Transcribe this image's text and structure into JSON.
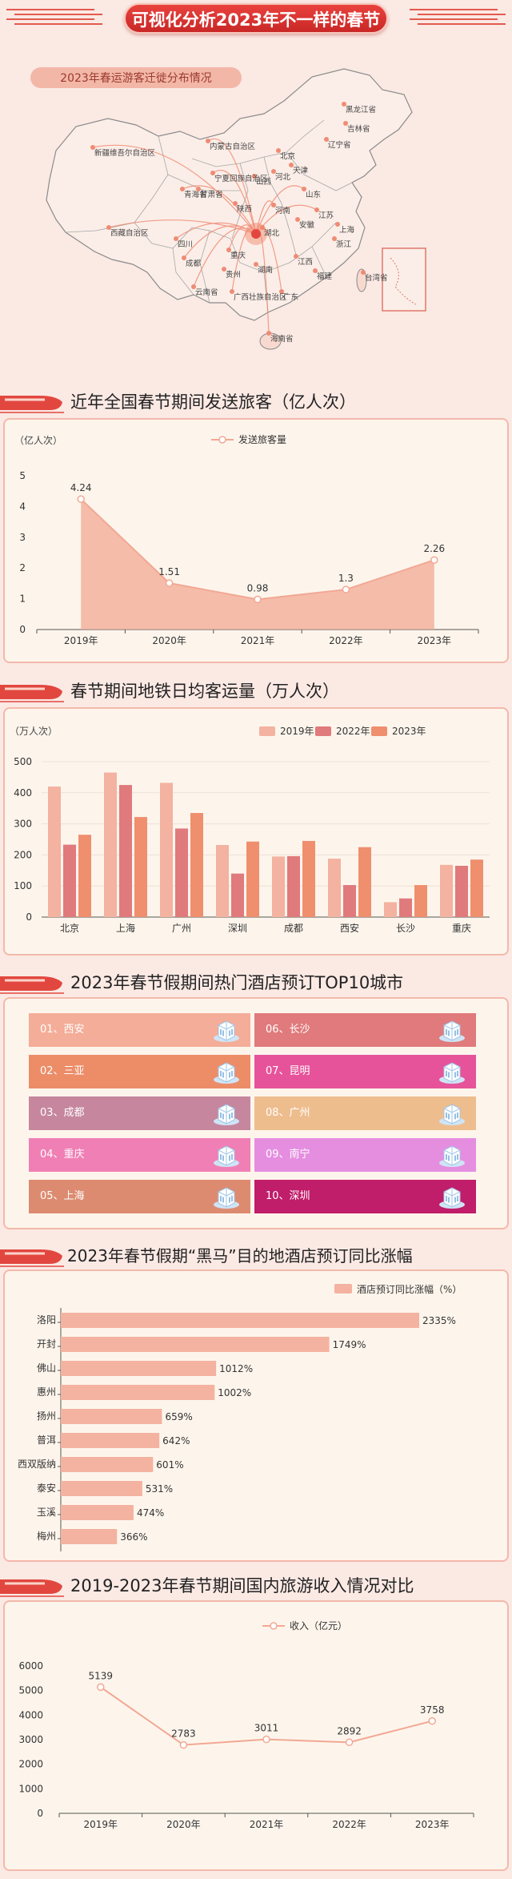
{
  "header": {
    "title": "可视化分析2023年不一样的春节"
  },
  "map": {
    "subtitle": "2023年春运游客迁徙分布情况",
    "labels": [
      "新疆维吾尔自治区",
      "西藏自治区",
      "内蒙古自治区",
      "黑龙江省",
      "吉林省",
      "辽宁省",
      "北京",
      "天津",
      "河北",
      "山西",
      "宁夏回族自治区",
      "甘肃省",
      "青海省",
      "陕西",
      "山东",
      "河南",
      "江苏",
      "安徽",
      "上海",
      "四川",
      "湖北",
      "浙江",
      "成都",
      "重庆",
      "湖南",
      "江西",
      "福建",
      "贵州",
      "云南省",
      "广西壮族自治区",
      "广东",
      "海南省",
      "台湾省"
    ]
  },
  "sections": {
    "s1": "近年全国春节期间发送旅客（亿人次）",
    "s2": "春节期间地铁日均客运量（万人次）",
    "s3": "2023年春节假期间热门酒店预订TOP10城市",
    "s4": "2023年春节假期“黑马”目的地酒店预订同比涨幅",
    "s5": "2019-2023年春节期间国内旅游收入情况对比"
  },
  "chart_data": [
    {
      "type": "area",
      "title": "近年全国春节期间发送旅客（亿人次）",
      "ylabel": "（亿人次）",
      "legend": [
        "发送旅客量"
      ],
      "x": [
        "2019年",
        "2020年",
        "2021年",
        "2022年",
        "2023年"
      ],
      "values": [
        4.24,
        1.51,
        0.98,
        1.3,
        2.26
      ],
      "ylim": [
        0,
        5
      ],
      "yticks": [
        0,
        1,
        2,
        3,
        4,
        5
      ],
      "color": "#f2a894"
    },
    {
      "type": "bar",
      "title": "春节期间地铁日均客运量（万人次）",
      "ylabel": "（万人次）",
      "categories": [
        "北京",
        "上海",
        "广州",
        "深圳",
        "成都",
        "西安",
        "长沙",
        "重庆"
      ],
      "series": [
        {
          "name": "2019年",
          "values": [
            420,
            465,
            432,
            232,
            195,
            188,
            48,
            168
          ],
          "color": "#f4b2a0"
        },
        {
          "name": "2022年",
          "values": [
            233,
            425,
            285,
            140,
            196,
            103,
            60,
            165
          ],
          "color": "#e07a7c"
        },
        {
          "name": "2023年",
          "values": [
            265,
            322,
            335,
            243,
            245,
            225,
            103,
            185
          ],
          "color": "#ef8f6e"
        }
      ],
      "ylim": [
        0,
        500
      ],
      "yticks": [
        0,
        100,
        200,
        300,
        400,
        500
      ]
    },
    {
      "type": "table",
      "title": "2023年春节假期间热门酒店预订TOP10城市",
      "items": [
        {
          "rank": "01",
          "city": "西安",
          "color": "#f4ad98"
        },
        {
          "rank": "02",
          "city": "三亚",
          "color": "#ec8d68"
        },
        {
          "rank": "03",
          "city": "成都",
          "color": "#c6869e"
        },
        {
          "rank": "04",
          "city": "重庆",
          "color": "#f07fb5"
        },
        {
          "rank": "05",
          "city": "上海",
          "color": "#dd8b70"
        },
        {
          "rank": "06",
          "city": "长沙",
          "color": "#e07a7c"
        },
        {
          "rank": "07",
          "city": "昆明",
          "color": "#e6539a"
        },
        {
          "rank": "08",
          "city": "广州",
          "color": "#eebd8e"
        },
        {
          "rank": "09",
          "city": "南宁",
          "color": "#e58ee0"
        },
        {
          "rank": "10",
          "city": "深圳",
          "color": "#c01d6a"
        }
      ]
    },
    {
      "type": "bar",
      "orientation": "horizontal",
      "title": "2023年春节假期“黑马”目的地酒店预订同比涨幅",
      "legend": [
        "酒店预订同比涨幅（%）"
      ],
      "categories": [
        "洛阳",
        "开封",
        "佛山",
        "惠州",
        "扬州",
        "普洱",
        "西双版纳",
        "泰安",
        "玉溪",
        "梅州"
      ],
      "values": [
        2335,
        1749,
        1012,
        1002,
        659,
        642,
        601,
        531,
        474,
        366
      ],
      "value_suffix": "%",
      "color": "#f4b2a0"
    },
    {
      "type": "line",
      "title": "2019-2023年春节期间国内旅游收入情况对比",
      "legend": [
        "收入（亿元）"
      ],
      "x": [
        "2019年",
        "2020年",
        "2021年",
        "2022年",
        "2023年"
      ],
      "values": [
        5139,
        2783,
        3011,
        2892,
        3758
      ],
      "ylim": [
        0,
        6000
      ],
      "yticks": [
        0,
        1000,
        2000,
        3000,
        4000,
        5000,
        6000
      ],
      "color": "#f2a894"
    }
  ]
}
